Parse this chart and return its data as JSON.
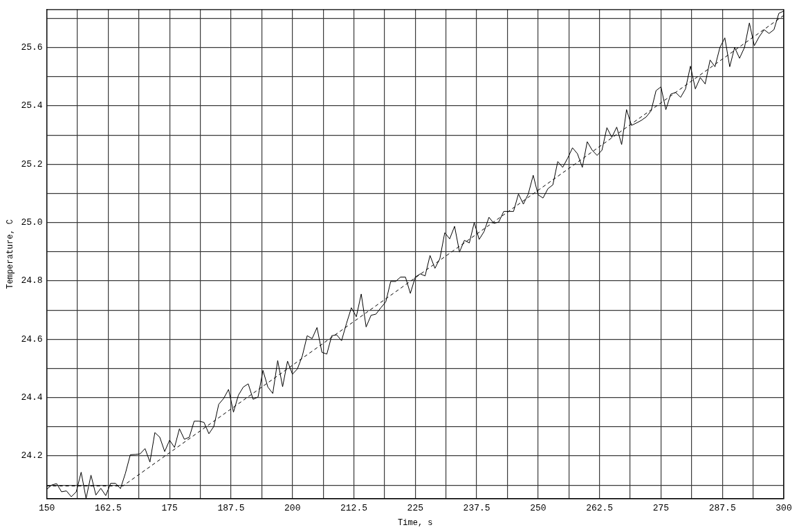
{
  "chart_data": {
    "type": "line",
    "xlabel": "Time, s",
    "ylabel": "Temperature, C",
    "xlim": [
      150,
      300
    ],
    "xticks": [
      150,
      {
        "value": 156.25,
        "label": null
      },
      162.5,
      {
        "value": 168.75,
        "label": null
      },
      175,
      {
        "value": 181.25,
        "label": null
      },
      187.5,
      {
        "value": 193.75,
        "label": null
      },
      200,
      {
        "value": 206.25,
        "label": null
      },
      212.5,
      {
        "value": 218.75,
        "label": null
      },
      225,
      {
        "value": 231.25,
        "label": null
      },
      237.5,
      {
        "value": 243.75,
        "label": null
      },
      250,
      {
        "value": 256.25,
        "label": null
      },
      262.5,
      {
        "value": 268.75,
        "label": null
      },
      275,
      {
        "value": 281.25,
        "label": null
      },
      287.5,
      {
        "value": 293.75,
        "label": null
      },
      300
    ],
    "ylim": [
      24.053,
      25.73
    ],
    "yticks": [
      {
        "value": 24.1,
        "label": null
      },
      {
        "value": 24.2,
        "label": "24.2"
      },
      {
        "value": 24.3,
        "label": null
      },
      {
        "value": 24.4,
        "label": "24.4"
      },
      {
        "value": 24.5,
        "label": null
      },
      {
        "value": 24.6,
        "label": "24.6"
      },
      {
        "value": 24.7,
        "label": null
      },
      {
        "value": 24.8,
        "label": "24.8"
      },
      {
        "value": 24.9,
        "label": null
      },
      {
        "value": 25.0,
        "label": "25.0"
      },
      {
        "value": 25.1,
        "label": null
      },
      {
        "value": 25.2,
        "label": "25.2"
      },
      {
        "value": 25.3,
        "label": null
      },
      {
        "value": 25.4,
        "label": "25.4"
      },
      {
        "value": 25.5,
        "label": null
      },
      {
        "value": 25.6,
        "label": "25.6"
      },
      {
        "value": 25.7,
        "label": null
      }
    ],
    "grid": true,
    "legend": false,
    "marker": "none",
    "series": [
      {
        "color": "#000000",
        "line_style": "solid",
        "x": [
          150,
          151,
          152,
          153,
          154,
          155,
          156,
          157,
          158,
          159,
          160,
          161,
          162,
          163,
          164,
          165,
          166,
          167,
          168,
          169,
          170,
          171,
          172,
          173,
          174,
          175,
          176,
          177,
          178,
          179,
          180,
          181,
          182,
          183,
          184,
          185,
          186,
          187,
          188,
          189,
          190,
          191,
          192,
          193,
          194,
          195,
          196,
          197,
          198,
          199,
          200,
          201,
          202,
          203,
          204,
          205,
          206,
          207,
          208,
          209,
          210,
          211,
          212,
          213,
          214,
          215,
          216,
          217,
          218,
          219,
          220,
          221,
          222,
          223,
          224,
          225,
          226,
          227,
          228,
          229,
          230,
          231,
          232,
          233,
          234,
          235,
          236,
          237,
          238,
          239,
          240,
          241,
          242,
          243,
          244,
          245,
          246,
          247,
          248,
          249,
          250,
          251,
          252,
          253,
          254,
          255,
          256,
          257,
          258,
          259,
          260,
          261,
          262,
          263,
          264,
          265,
          266,
          267,
          268,
          269,
          270,
          271,
          272,
          273,
          274,
          275,
          276,
          277,
          278,
          279,
          280,
          281,
          282,
          283,
          284,
          285,
          286,
          287,
          288,
          289,
          290,
          291,
          292,
          293,
          294,
          295,
          296,
          297,
          298,
          299,
          300
        ],
        "values": [
          24.086,
          24.1,
          24.105,
          24.077,
          24.08,
          24.06,
          24.077,
          24.144,
          24.054,
          24.134,
          24.066,
          24.089,
          24.064,
          24.106,
          24.106,
          24.088,
          24.14,
          24.204,
          24.205,
          24.207,
          24.225,
          24.179,
          24.28,
          24.264,
          24.215,
          24.254,
          24.229,
          24.293,
          24.257,
          24.264,
          24.319,
          24.319,
          24.315,
          24.276,
          24.301,
          24.377,
          24.397,
          24.428,
          24.35,
          24.408,
          24.436,
          24.447,
          24.394,
          24.402,
          24.493,
          24.436,
          24.414,
          24.527,
          24.437,
          24.525,
          24.48,
          24.498,
          24.542,
          24.612,
          24.602,
          24.64,
          24.555,
          24.549,
          24.612,
          24.615,
          24.595,
          24.654,
          24.708,
          24.677,
          24.755,
          24.642,
          24.682,
          24.686,
          24.708,
          24.728,
          24.798,
          24.798,
          24.813,
          24.813,
          24.757,
          24.813,
          24.824,
          24.817,
          24.887,
          24.843,
          24.876,
          24.965,
          24.944,
          24.987,
          24.899,
          24.939,
          24.93,
          25.0,
          24.942,
          24.969,
          25.018,
          24.997,
          25.002,
          25.038,
          25.038,
          25.038,
          25.098,
          25.063,
          25.098,
          25.162,
          25.095,
          25.084,
          25.116,
          25.129,
          25.209,
          25.189,
          25.22,
          25.256,
          25.236,
          25.189,
          25.277,
          25.248,
          25.23,
          25.248,
          25.325,
          25.292,
          25.327,
          25.267,
          25.387,
          25.333,
          25.341,
          25.35,
          25.362,
          25.383,
          25.452,
          25.465,
          25.387,
          25.44,
          25.446,
          25.429,
          25.458,
          25.536,
          25.458,
          25.497,
          25.475,
          25.557,
          25.534,
          25.6,
          25.633,
          25.534,
          25.6,
          25.563,
          25.6,
          25.684,
          25.606,
          25.637,
          25.661,
          25.648,
          25.661,
          25.717,
          25.725
        ]
      },
      {
        "color": "#000000",
        "line_style": "dashed",
        "x": [
          150,
          165.5,
          300
        ],
        "values": [
          24.097,
          24.097,
          25.71
        ]
      }
    ]
  }
}
